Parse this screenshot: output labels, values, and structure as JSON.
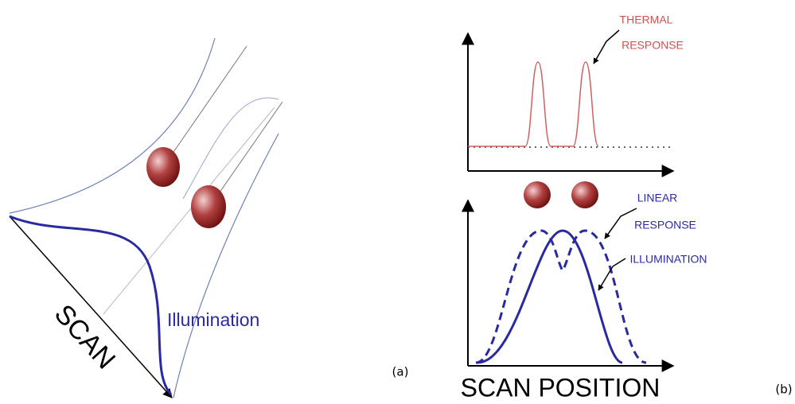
{
  "panel_a": {
    "scan_label": "SCAN",
    "illumination_label": "Illumination",
    "caption": "(a)"
  },
  "panel_b": {
    "thermal_label": [
      "THERMAL",
      "RESPONSE"
    ],
    "linear_label": [
      "LINEAR",
      "RESPONSE"
    ],
    "illumination_label": "ILLUMINATION",
    "x_axis_label": "SCAN POSITION",
    "caption": "(b)"
  }
}
